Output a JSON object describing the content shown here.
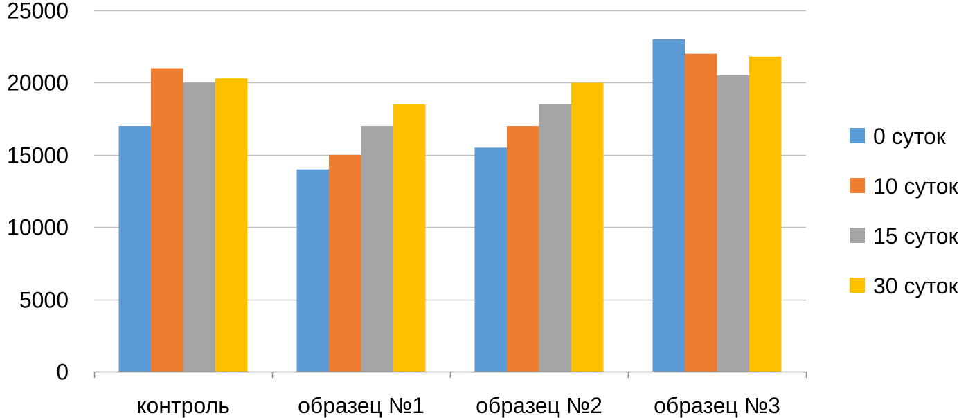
{
  "chart_data": {
    "type": "bar",
    "title": "",
    "xlabel": "",
    "ylabel": "",
    "categories": [
      "контроль",
      "образец №1",
      "образец №2",
      "образец №3"
    ],
    "series": [
      {
        "name": "0 суток",
        "color": "#5B9BD5",
        "values": [
          17000,
          14000,
          15500,
          23000
        ]
      },
      {
        "name": "10 суток",
        "color": "#ED7D31",
        "values": [
          21000,
          15000,
          17000,
          22000
        ]
      },
      {
        "name": "15 суток",
        "color": "#A5A5A5",
        "values": [
          20000,
          17000,
          18500,
          20500
        ]
      },
      {
        "name": "30 суток",
        "color": "#FFC000",
        "values": [
          20300,
          18500,
          20000,
          21800
        ]
      }
    ],
    "ylim": [
      0,
      25000
    ],
    "yticks": [
      0,
      5000,
      10000,
      15000,
      20000,
      25000
    ],
    "grid": true,
    "legend_position": "right",
    "gridline_color": "#BFBFBF",
    "axis_color": "#868686"
  }
}
